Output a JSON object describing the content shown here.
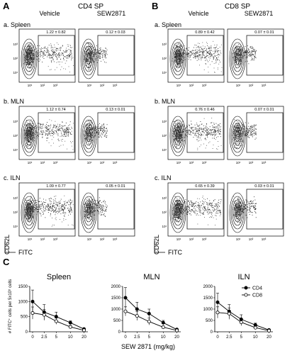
{
  "panel_a": {
    "letter": "A",
    "title": "CD4 SP",
    "columns": [
      "Vehicle",
      "SEW2871"
    ],
    "rows": [
      {
        "label": "a. Spleen",
        "vehicle_gate": "1.22 ± 0.82",
        "sew_gate": "0.12 ± 0.03"
      },
      {
        "label": "b. MLN",
        "vehicle_gate": "1.12 ± 0.74",
        "sew_gate": "0.13 ± 0.01"
      },
      {
        "label": "c. ILN",
        "vehicle_gate": "1.09 ± 0.77",
        "sew_gate": "0.05 ± 0.01"
      }
    ],
    "y_axis": "CD62L",
    "x_axis": "FITC"
  },
  "panel_b": {
    "letter": "B",
    "title": "CD8 SP",
    "columns": [
      "Vehicle",
      "SEW2871"
    ],
    "rows": [
      {
        "label": "a. Spleen",
        "vehicle_gate": "0.89 ± 0.42",
        "sew_gate": "0.07 ± 0.01"
      },
      {
        "label": "b. MLN",
        "vehicle_gate": "0.76 ± 0.46",
        "sew_gate": "0.07 ± 0.01"
      },
      {
        "label": "c. ILN",
        "vehicle_gate": "0.65 ± 0.39",
        "sew_gate": "0.03 ± 0.01"
      }
    ],
    "y_axis": "CD62L",
    "x_axis": "FITC"
  },
  "flow_ticks": [
    "10¹",
    "10²",
    "10³"
  ],
  "panel_c": {
    "letter": "C",
    "y_label": "# FITC⁺ cells per 5x10⁵ cells",
    "x_label": "SEW 2871 (mg/kg)",
    "legend": [
      "CD4",
      "CD8"
    ]
  },
  "chart_data": [
    {
      "type": "line",
      "title": "Spleen",
      "x": [
        0,
        2.5,
        5,
        10,
        20
      ],
      "x_tick_labels": [
        "0",
        "2.5",
        "5",
        "10",
        "20"
      ],
      "ylim": [
        0,
        1500
      ],
      "y_ticks": [
        0,
        500,
        1000,
        1500
      ],
      "series": [
        {
          "name": "CD4",
          "marker": "filled",
          "values": [
            1000,
            650,
            500,
            300,
            90
          ],
          "errors": [
            380,
            250,
            150,
            60,
            30
          ]
        },
        {
          "name": "CD8",
          "marker": "open",
          "values": [
            620,
            560,
            350,
            160,
            50
          ],
          "errors": [
            200,
            180,
            100,
            50,
            20
          ]
        }
      ]
    },
    {
      "type": "line",
      "title": "MLN",
      "x": [
        0,
        2.5,
        5,
        10,
        20
      ],
      "x_tick_labels": [
        "0",
        "2.5",
        "5",
        "10",
        "20"
      ],
      "ylim": [
        0,
        2000
      ],
      "y_ticks": [
        0,
        500,
        1000,
        1500,
        2000
      ],
      "series": [
        {
          "name": "CD4",
          "marker": "filled",
          "values": [
            1500,
            1000,
            800,
            400,
            100
          ],
          "errors": [
            450,
            300,
            200,
            100,
            30
          ]
        },
        {
          "name": "CD8",
          "marker": "open",
          "values": [
            900,
            700,
            450,
            200,
            60
          ],
          "errors": [
            200,
            200,
            150,
            60,
            20
          ]
        }
      ]
    },
    {
      "type": "line",
      "title": "ILN",
      "x": [
        0,
        2.5,
        5,
        10,
        20
      ],
      "x_tick_labels": [
        "0",
        "2.5",
        "5",
        "10",
        "20"
      ],
      "ylim": [
        0,
        2000
      ],
      "y_ticks": [
        0,
        500,
        1000,
        1500,
        2000
      ],
      "series": [
        {
          "name": "CD4",
          "marker": "filled",
          "values": [
            1300,
            900,
            550,
            300,
            80
          ],
          "errors": [
            400,
            300,
            200,
            80,
            30
          ]
        },
        {
          "name": "CD8",
          "marker": "open",
          "values": [
            850,
            800,
            420,
            180,
            50
          ],
          "errors": [
            250,
            250,
            150,
            60,
            20
          ]
        }
      ]
    }
  ]
}
